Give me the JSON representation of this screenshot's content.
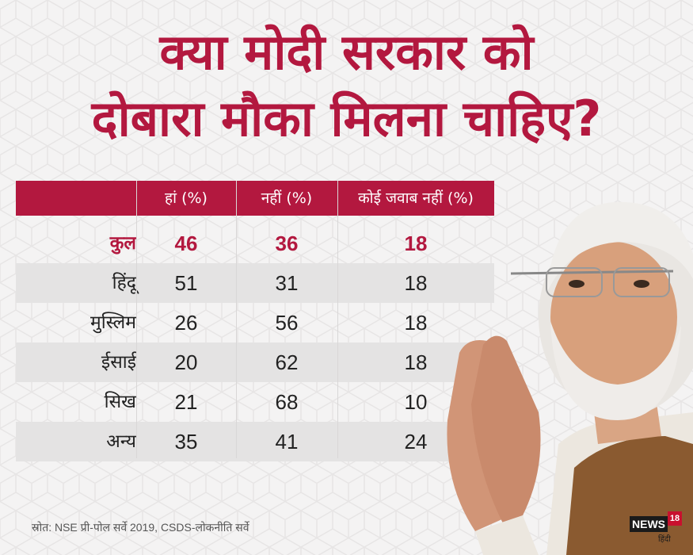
{
  "title": {
    "line1": "क्या मोदी सरकार को",
    "line2": "दोबारा मौका मिलना चाहिए?"
  },
  "chart_data": {
    "type": "table",
    "columns": [
      "",
      "हां (%)",
      "नहीं (%)",
      "कोई जवाब नहीं (%)"
    ],
    "rows": [
      {
        "label": "कुल",
        "values": [
          "46",
          "36",
          "18"
        ]
      },
      {
        "label": "हिंदू",
        "values": [
          "51",
          "31",
          "18"
        ]
      },
      {
        "label": "मुस्लिम",
        "values": [
          "26",
          "56",
          "18"
        ]
      },
      {
        "label": "ईसाई",
        "values": [
          "20",
          "62",
          "18"
        ]
      },
      {
        "label": "सिख",
        "values": [
          "21",
          "68",
          "10"
        ]
      },
      {
        "label": "अन्य",
        "values": [
          "35",
          "41",
          "24"
        ]
      }
    ]
  },
  "source": "स्रोत: NSE प्री-पोल सर्वे 2019, CSDS-लोकनीति सर्वे",
  "logo": {
    "word": "NEWS",
    "number": "18",
    "sub": "हिंदी"
  },
  "colors": {
    "accent": "#b3183f",
    "row_shade": "#e4e3e3",
    "background": "#f4f3f3"
  }
}
